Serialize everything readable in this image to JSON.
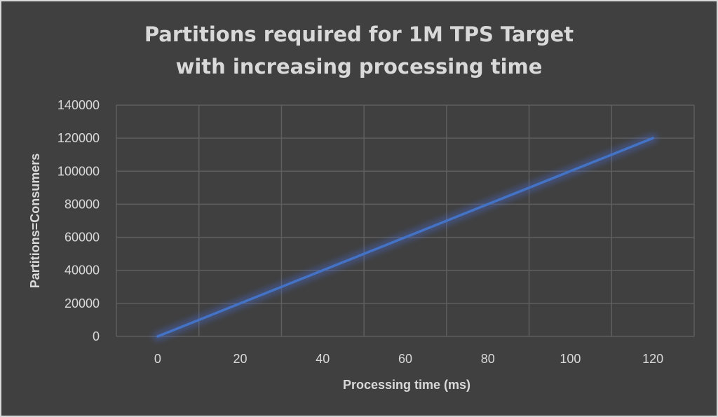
{
  "chart_data": {
    "type": "line",
    "title_lines": [
      "Partitions required for 1M TPS Target",
      "with increasing processing time"
    ],
    "xlabel": "Processing time (ms)",
    "ylabel": "Partitions=Consumers",
    "xlim": [
      -10,
      130
    ],
    "ylim": [
      0,
      140000
    ],
    "x_ticks": [
      0,
      20,
      40,
      60,
      80,
      100,
      120
    ],
    "y_ticks": [
      0,
      20000,
      40000,
      60000,
      80000,
      100000,
      120000,
      140000
    ],
    "x_tick_labels": [
      "0",
      "20",
      "40",
      "60",
      "80",
      "100",
      "120"
    ],
    "y_tick_labels": [
      "0",
      "20000",
      "40000",
      "60000",
      "80000",
      "100000",
      "120000",
      "140000"
    ],
    "grid": true,
    "legend": "none",
    "series": [
      {
        "color": "#4472c4",
        "x": [
          0,
          20,
          40,
          60,
          80,
          100,
          120
        ],
        "y": [
          0,
          20000,
          40000,
          60000,
          80000,
          100000,
          120000
        ]
      }
    ]
  }
}
